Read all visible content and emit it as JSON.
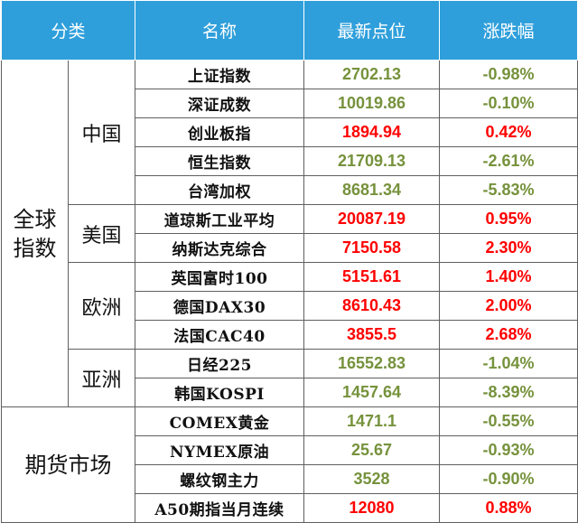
{
  "headers": {
    "category": "分类",
    "name": "名称",
    "latest": "最新点位",
    "change": "涨跌幅"
  },
  "groups": {
    "global": "全球指数",
    "futures": "期货市场",
    "china": "中国",
    "usa": "美国",
    "europe": "欧洲",
    "asia": "亚洲"
  },
  "colors": {
    "up": "#ff0000",
    "down": "#76923c",
    "header_bg": "#2f9fdb"
  },
  "rows": [
    {
      "name": "上证指数",
      "value": "2702.13",
      "change": "-0.98%",
      "dir": "down"
    },
    {
      "name": "深证成数",
      "value": "10019.86",
      "change": "-0.10%",
      "dir": "down"
    },
    {
      "name": "创业板指",
      "value": "1894.94",
      "change": "0.42%",
      "dir": "up"
    },
    {
      "name": "恒生指数",
      "value": "21709.13",
      "change": "-2.61%",
      "dir": "down"
    },
    {
      "name": "台湾加权",
      "value": "8681.34",
      "change": "-5.83%",
      "dir": "down"
    },
    {
      "name": "道琼斯工业平均",
      "value": "20087.19",
      "change": "0.95%",
      "dir": "up"
    },
    {
      "name": "纳斯达克综合",
      "value": "7150.58",
      "change": "2.30%",
      "dir": "up"
    },
    {
      "name": "英国富时100",
      "value": "5151.61",
      "change": "1.40%",
      "dir": "up"
    },
    {
      "name": "德国DAX30",
      "value": "8610.43",
      "change": "2.00%",
      "dir": "up"
    },
    {
      "name": "法国CAC40",
      "value": "3855.5",
      "change": "2.68%",
      "dir": "up"
    },
    {
      "name": "日经225",
      "value": "16552.83",
      "change": "-1.04%",
      "dir": "down"
    },
    {
      "name": "韩国KOSPI",
      "value": "1457.64",
      "change": "-8.39%",
      "dir": "down"
    },
    {
      "name": "COMEX黄金",
      "value": "1471.1",
      "change": "-0.55%",
      "dir": "down"
    },
    {
      "name": "NYMEX原油",
      "value": "25.67",
      "change": "-0.93%",
      "dir": "down"
    },
    {
      "name": "螺纹钢主力",
      "value": "3528",
      "change": "-0.90%",
      "dir": "down"
    },
    {
      "name": "A50期指当月连续",
      "value": "12080",
      "change": "0.88%",
      "dir": "up"
    }
  ]
}
